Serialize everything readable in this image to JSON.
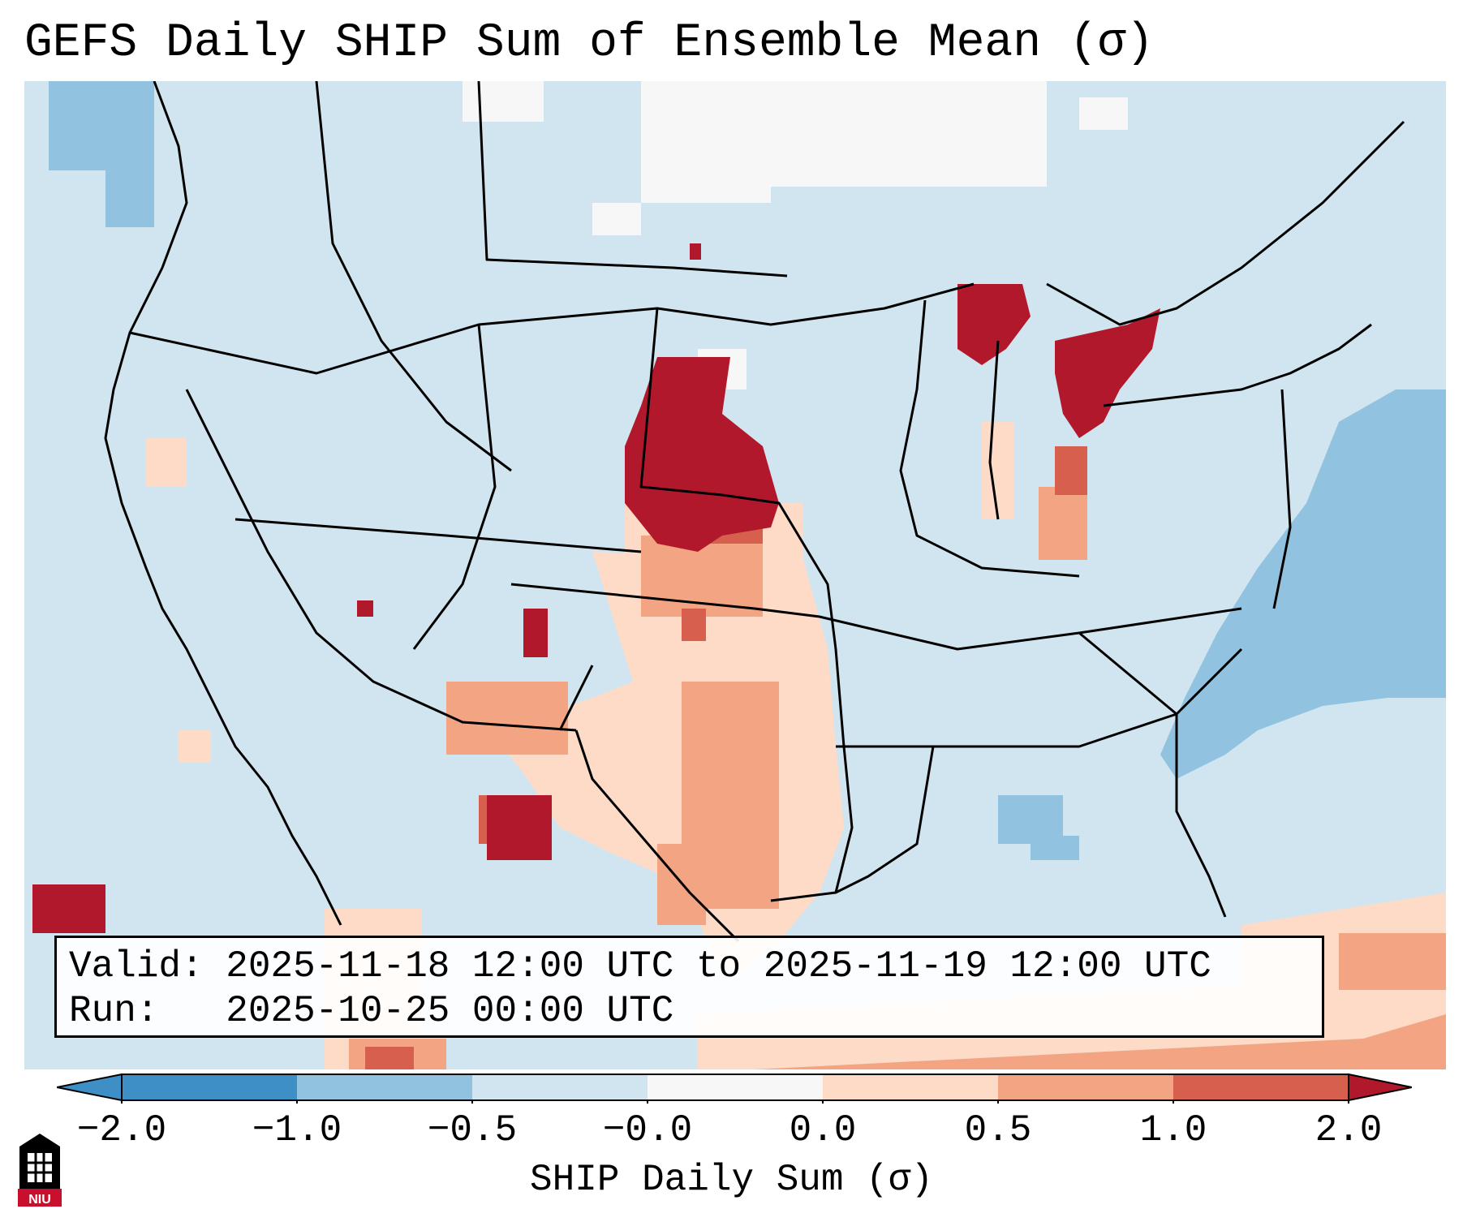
{
  "title": "GEFS Daily SHIP Sum of Ensemble Mean (σ)",
  "info": {
    "valid_label": "Valid:",
    "valid_value": "2025-11-18 12:00 UTC to 2025-11-19 12:00 UTC",
    "run_label": "Run:",
    "run_value": "2025-10-25 00:00 UTC"
  },
  "colorbar": {
    "label": "SHIP Daily Sum (σ)",
    "ticks": [
      "−2.0",
      "−1.0",
      "−0.5",
      "−0.0",
      "0.0",
      "0.5",
      "1.0",
      "2.0"
    ],
    "colors": [
      "#3f8fc7",
      "#91c2df",
      "#d1e5f0",
      "#f7f7f7",
      "#fddbc7",
      "#f3a482",
      "#d6604d",
      "#b2182b"
    ]
  },
  "map": {
    "ocean_color": "#d1e5f0",
    "region": "Contiguous United States"
  },
  "logo": {
    "text": "NIU",
    "color": "#c8102e"
  }
}
